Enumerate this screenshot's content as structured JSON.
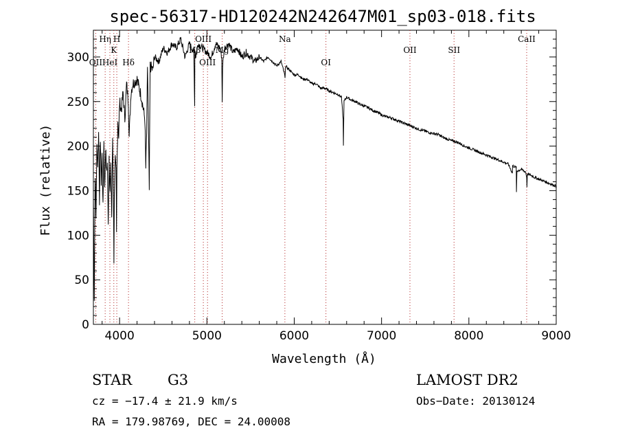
{
  "chart_data": {
    "type": "line",
    "title": "spec-56317-HD120242N242647M01_sp03-018.fits",
    "xlabel": "Wavelength (Å)",
    "ylabel": "Flux (relative)",
    "xlim": [
      3700,
      9000
    ],
    "ylim": [
      0,
      330
    ],
    "xticks": [
      4000,
      5000,
      6000,
      7000,
      8000,
      9000
    ],
    "yticks": [
      0,
      50,
      100,
      150,
      200,
      250,
      300
    ],
    "series": [
      {
        "name": "Flux",
        "x": [
          3700,
          3710,
          3720,
          3730,
          3740,
          3750,
          3760,
          3770,
          3780,
          3790,
          3800,
          3810,
          3820,
          3830,
          3840,
          3850,
          3860,
          3870,
          3880,
          3890,
          3900,
          3910,
          3920,
          3930,
          3935,
          3940,
          3950,
          3960,
          3965,
          3970,
          3980,
          3990,
          4000,
          4020,
          4040,
          4060,
          4080,
          4100,
          4110,
          4130,
          4150,
          4200,
          4250,
          4290,
          4300,
          4310,
          4320,
          4340,
          4350,
          4380,
          4400,
          4450,
          4500,
          4550,
          4600,
          4650,
          4700,
          4750,
          4800,
          4850,
          4860,
          4862,
          4870,
          4900,
          4950,
          5000,
          5050,
          5100,
          5150,
          5170,
          5175,
          5180,
          5200,
          5250,
          5300,
          5350,
          5400,
          5450,
          5500,
          5550,
          5600,
          5650,
          5700,
          5750,
          5800,
          5850,
          5890,
          5895,
          5900,
          5950,
          6000,
          6050,
          6100,
          6150,
          6200,
          6250,
          6300,
          6350,
          6400,
          6450,
          6500,
          6540,
          6560,
          6563,
          6570,
          6600,
          6650,
          6700,
          6750,
          6800,
          6850,
          6900,
          6950,
          7000,
          7050,
          7100,
          7150,
          7200,
          7250,
          7300,
          7350,
          7400,
          7450,
          7500,
          7550,
          7600,
          7650,
          7700,
          7750,
          7800,
          7850,
          7900,
          7950,
          8000,
          8050,
          8100,
          8150,
          8200,
          8250,
          8300,
          8350,
          8400,
          8450,
          8498,
          8500,
          8542,
          8545,
          8550,
          8600,
          8650,
          8662,
          8665,
          8670,
          8700,
          8750,
          8800,
          8850,
          8900,
          8950,
          9000
        ],
        "values": [
          140,
          30,
          170,
          120,
          200,
          180,
          215,
          140,
          210,
          160,
          190,
          130,
          205,
          150,
          200,
          170,
          180,
          110,
          190,
          150,
          175,
          120,
          210,
          155,
          65,
          150,
          185,
          170,
          100,
          175,
          230,
          210,
          250,
          240,
          260,
          230,
          270,
          250,
          210,
          260,
          270,
          275,
          255,
          230,
          175,
          215,
          290,
          150,
          290,
          285,
          300,
          295,
          310,
          305,
          315,
          310,
          320,
          300,
          315,
          305,
          245,
          310,
          300,
          315,
          310,
          305,
          300,
          315,
          310,
          300,
          250,
          290,
          310,
          315,
          305,
          310,
          300,
          305,
          300,
          295,
          300,
          295,
          300,
          295,
          290,
          295,
          280,
          275,
          290,
          285,
          280,
          280,
          275,
          275,
          270,
          270,
          265,
          265,
          262,
          260,
          258,
          255,
          230,
          200,
          250,
          255,
          252,
          250,
          247,
          245,
          243,
          240,
          238,
          235,
          233,
          232,
          230,
          228,
          226,
          224,
          222,
          220,
          218,
          217,
          215,
          214,
          213,
          210,
          208,
          206,
          205,
          203,
          200,
          198,
          196,
          194,
          192,
          190,
          188,
          186,
          184,
          182,
          180,
          170,
          178,
          176,
          148,
          172,
          174,
          171,
          165,
          155,
          168,
          168,
          165,
          163,
          161,
          159,
          157,
          155
        ]
      }
    ],
    "annotations": [
      {
        "label": "OII",
        "x": 3727,
        "row": 3
      },
      {
        "label": "Hη",
        "x": 3835,
        "row": 1
      },
      {
        "label": "HeI",
        "x": 3889,
        "row": 3
      },
      {
        "label": "K",
        "x": 3934,
        "row": 2
      },
      {
        "label": "H",
        "x": 3968,
        "row": 1
      },
      {
        "label": "Hδ",
        "x": 4102,
        "row": 3
      },
      {
        "label": "OIII",
        "x": 4959,
        "row": 1
      },
      {
        "label": "Hβ",
        "x": 4861,
        "row": 2
      },
      {
        "label": "OIII",
        "x": 5007,
        "row": 3
      },
      {
        "label": "Mg",
        "x": 5175,
        "row": 2
      },
      {
        "label": "Na",
        "x": 5893,
        "row": 1
      },
      {
        "label": "OI",
        "x": 6363,
        "row": 3
      },
      {
        "label": "OII",
        "x": 7325,
        "row": 2
      },
      {
        "label": "SII",
        "x": 7830,
        "row": 2
      },
      {
        "label": "CaII",
        "x": 8662,
        "row": 1
      }
    ]
  },
  "info": {
    "class_label": "STAR",
    "subclass": "G3",
    "survey": "LAMOST DR2",
    "cz": "cz = −17.4 ± 21.9 km/s",
    "obs_date": "Obs−Date: 20130124",
    "coords": "RA = 179.98769, DEC =  24.00008"
  },
  "colors": {
    "line": "#000000",
    "marker": "#b02020"
  }
}
